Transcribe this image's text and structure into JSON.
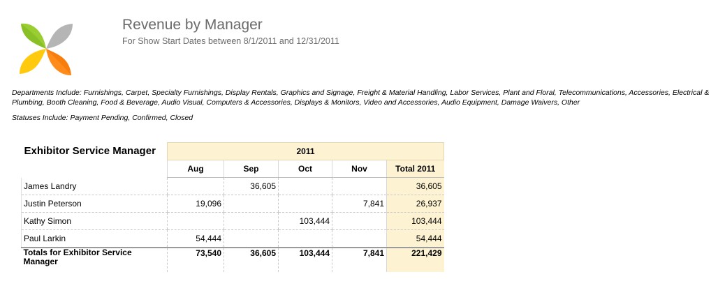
{
  "header": {
    "title": "Revenue by Manager",
    "subtitle": "For Show Start Dates between 8/1/2011 and 12/31/2011"
  },
  "notes": {
    "departments": "Departments Include: Furnishings, Carpet, Specialty Furnishings, Display Rentals, Graphics and Signage, Freight & Material Handling, Labor Services, Plant and Floral, Telecommunications, Accessories, Electrical & Plumbing, Booth Cleaning, Food & Beverage, Audio Visual, Computers & Accessories, Displays & Monitors, Video and Accessories, Audio Equipment, Damage Waivers, Other",
    "statuses": "Statuses Include: Payment Pending, Confirmed, Closed"
  },
  "table": {
    "row_header": "Exhibitor Service Manager",
    "year": "2011",
    "columns": [
      "Aug",
      "Sep",
      "Oct",
      "Nov",
      "Total 2011"
    ],
    "rows": [
      {
        "name": "James Landry",
        "values": [
          "",
          "36,605",
          "",
          "",
          "36,605"
        ]
      },
      {
        "name": "Justin Peterson",
        "values": [
          "19,096",
          "",
          "",
          "7,841",
          "26,937"
        ]
      },
      {
        "name": "Kathy Simon",
        "values": [
          "",
          "",
          "103,444",
          "",
          "103,444"
        ]
      },
      {
        "name": "Paul Larkin",
        "values": [
          "54,444",
          "",
          "",
          "",
          "54,444"
        ]
      }
    ],
    "totals": {
      "label": "Totals for Exhibitor Service Manager",
      "values": [
        "73,540",
        "36,605",
        "103,444",
        "7,841",
        "221,429"
      ]
    }
  },
  "colors": {
    "title_gray": "#6b6b6b",
    "total_column_bg": "#fdf3d2",
    "logo": [
      "#9acd32",
      "#b0b0b0",
      "#ffcc00",
      "#ff8c00"
    ]
  }
}
